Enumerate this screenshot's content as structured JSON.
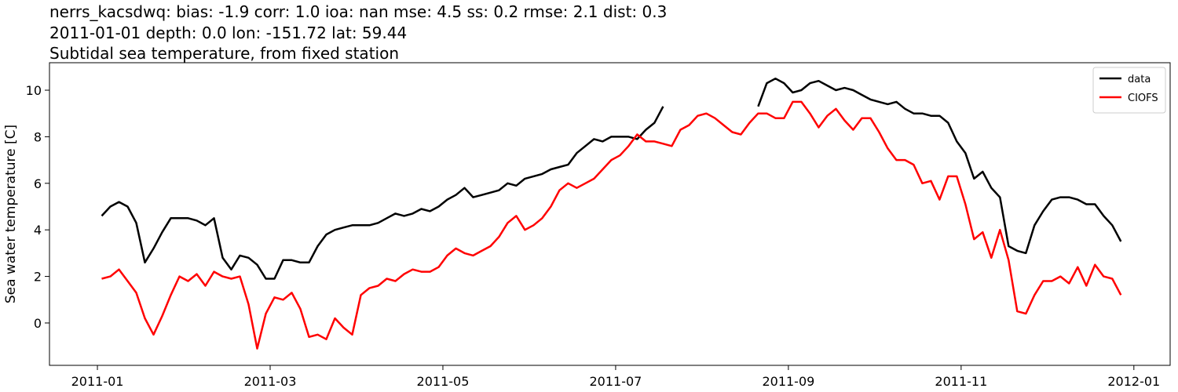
{
  "chart_data": {
    "type": "line",
    "title": [
      "nerrs_kacsdwq: bias: -1.9  corr: 1.0  ioa: nan  mse: 4.5  ss: 0.2  rmse: 2.1  dist: 0.3",
      "2011-01-01 depth: 0.0 lon: -151.72 lat: 59.44",
      "Subtidal sea temperature, from fixed station"
    ],
    "ylabel": "Sea water temperature [C]",
    "x": [
      0.05,
      0.15,
      0.25,
      0.35,
      0.45,
      0.55,
      0.65,
      0.75,
      0.85,
      0.95,
      1.05,
      1.15,
      1.25,
      1.35,
      1.45,
      1.55,
      1.65,
      1.75,
      1.85,
      1.95,
      2.05,
      2.15,
      2.25,
      2.35,
      2.45,
      2.55,
      2.65,
      2.75,
      2.85,
      2.95,
      3.05,
      3.15,
      3.25,
      3.35,
      3.45,
      3.55,
      3.65,
      3.75,
      3.85,
      3.95,
      4.05,
      4.15,
      4.25,
      4.35,
      4.45,
      4.55,
      4.65,
      4.75,
      4.85,
      4.95,
      5.05,
      5.15,
      5.25,
      5.35,
      5.45,
      5.55,
      5.65,
      5.75,
      5.85,
      5.95,
      6.05,
      6.15,
      6.25,
      6.35,
      6.45,
      6.55,
      6.65,
      6.75,
      6.85,
      6.95,
      7.05,
      7.15,
      7.25,
      7.35,
      7.45,
      7.55,
      7.65,
      7.75,
      7.85,
      7.95,
      8.05,
      8.15,
      8.25,
      8.35,
      8.45,
      8.55,
      8.65,
      8.75,
      8.85,
      8.95,
      9.05,
      9.15,
      9.25,
      9.35,
      9.45,
      9.55,
      9.65,
      9.75,
      9.85,
      9.95,
      10.05,
      10.15,
      10.25,
      10.35,
      10.45,
      10.55,
      10.65,
      10.75,
      10.85,
      10.95,
      11.05,
      11.15,
      11.25,
      11.35,
      11.45,
      11.55,
      11.65,
      11.75,
      11.85
    ],
    "series": [
      {
        "name": "data",
        "color": "#000000",
        "values": [
          4.6,
          5.0,
          5.2,
          5.0,
          4.3,
          2.6,
          3.2,
          3.9,
          4.5,
          4.5,
          4.5,
          4.4,
          4.2,
          4.5,
          2.8,
          2.3,
          2.9,
          2.8,
          2.5,
          1.9,
          1.9,
          2.7,
          2.7,
          2.6,
          2.6,
          3.3,
          3.8,
          4.0,
          4.1,
          4.2,
          4.2,
          4.2,
          4.3,
          4.5,
          4.7,
          4.6,
          4.7,
          4.9,
          4.8,
          5.0,
          5.3,
          5.5,
          5.8,
          5.4,
          5.5,
          5.6,
          5.7,
          6.0,
          5.9,
          6.2,
          6.3,
          6.4,
          6.6,
          6.7,
          6.8,
          7.3,
          7.6,
          7.9,
          7.8,
          8.0,
          8.0,
          8.0,
          7.9,
          8.3,
          8.6,
          9.3,
          null,
          null,
          null,
          null,
          null,
          null,
          null,
          null,
          null,
          null,
          9.3,
          10.3,
          10.5,
          10.3,
          9.9,
          10.0,
          10.3,
          10.4,
          10.2,
          10.0,
          10.1,
          10.0,
          9.8,
          9.6,
          9.5,
          9.4,
          9.5,
          9.2,
          9.0,
          9.0,
          8.9,
          8.9,
          8.6,
          7.8,
          7.3,
          6.2,
          6.5,
          5.8,
          5.4,
          3.3,
          3.1,
          3.0,
          4.2,
          4.8,
          5.3,
          5.4,
          5.4,
          5.3,
          5.1,
          5.1,
          4.6,
          4.2,
          3.5
        ]
      },
      {
        "name": "CIOFS",
        "color": "#ff0000",
        "values": [
          1.9,
          2.0,
          2.3,
          1.8,
          1.3,
          0.2,
          -0.5,
          0.3,
          1.2,
          2.0,
          1.8,
          2.1,
          1.6,
          2.2,
          2.0,
          1.9,
          2.0,
          0.8,
          -1.1,
          0.4,
          1.1,
          1.0,
          1.3,
          0.6,
          -0.6,
          -0.5,
          -0.7,
          0.2,
          -0.2,
          -0.5,
          1.2,
          1.5,
          1.6,
          1.9,
          1.8,
          2.1,
          2.3,
          2.2,
          2.2,
          2.4,
          2.9,
          3.2,
          3.0,
          2.9,
          3.1,
          3.3,
          3.7,
          4.3,
          4.6,
          4.0,
          4.2,
          4.5,
          5.0,
          5.7,
          6.0,
          5.8,
          6.0,
          6.2,
          6.6,
          7.0,
          7.2,
          7.6,
          8.1,
          7.8,
          7.8,
          7.7,
          7.6,
          8.3,
          8.5,
          8.9,
          9.0,
          8.8,
          8.5,
          8.2,
          8.1,
          8.6,
          9.0,
          9.0,
          8.8,
          8.8,
          9.5,
          9.5,
          9.0,
          8.4,
          8.9,
          9.2,
          8.7,
          8.3,
          8.8,
          8.8,
          8.2,
          7.5,
          7.0,
          7.0,
          6.8,
          6.0,
          6.1,
          5.3,
          6.3,
          6.3,
          5.1,
          3.6,
          3.9,
          2.8,
          4.0,
          2.7,
          0.5,
          0.4,
          1.2,
          1.8,
          1.8,
          2.0,
          1.7,
          2.4,
          1.6,
          2.5,
          2.0,
          1.9,
          1.2
        ]
      }
    ],
    "xlim": [
      -0.555,
      12.42
    ],
    "xticks": [
      {
        "value": 0,
        "label": "2011-01"
      },
      {
        "value": 2,
        "label": "2011-03"
      },
      {
        "value": 4,
        "label": "2011-05"
      },
      {
        "value": 6,
        "label": "2011-07"
      },
      {
        "value": 8,
        "label": "2011-09"
      },
      {
        "value": 10,
        "label": "2011-11"
      },
      {
        "value": 12,
        "label": "2012-01"
      }
    ],
    "ylim": [
      -1.82,
      11.18
    ],
    "yticks": [
      0,
      2,
      4,
      6,
      8,
      10
    ],
    "legend": "upper right"
  }
}
